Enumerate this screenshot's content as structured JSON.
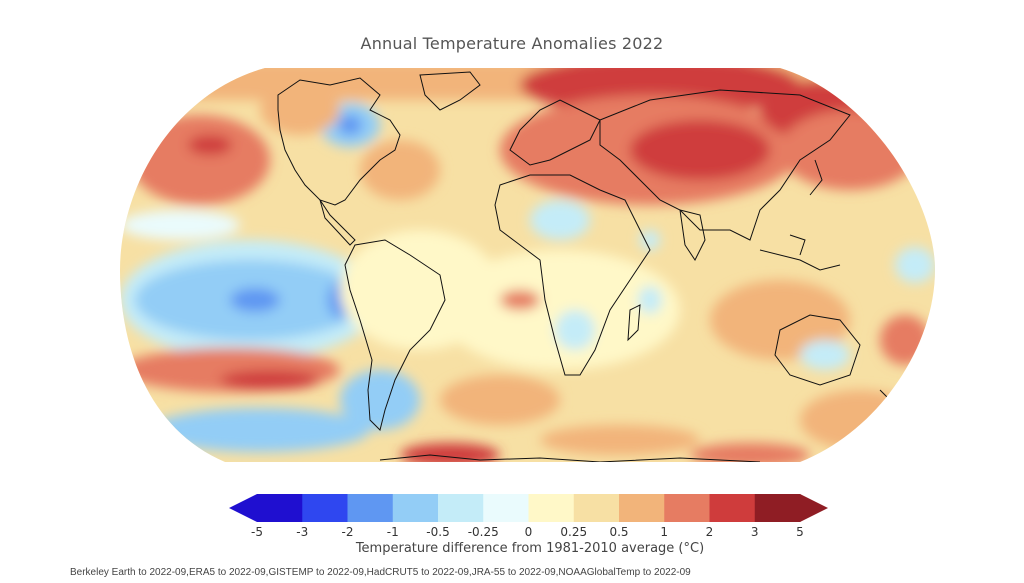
{
  "title": "Annual Temperature Anomalies 2022",
  "legend": {
    "title": "Temperature difference from 1981-2010 average (°C)",
    "ticks": [
      "-5",
      "-3",
      "-2",
      "-1",
      "-0.5",
      "-0.25",
      "0",
      "0.25",
      "0.5",
      "1",
      "2",
      "3",
      "5"
    ],
    "colors": [
      "#1f0fd0",
      "#2f47f0",
      "#5f97f2",
      "#93cdf6",
      "#c4ecf8",
      "#eafbfd",
      "#fff8c8",
      "#f7e0a4",
      "#f2b47a",
      "#e67c62",
      "#cf3c3c",
      "#8f1d24"
    ],
    "extend_low_color": "#1f0fd0",
    "extend_high_color": "#8f1d24"
  },
  "source": "Berkeley Earth to 2022-09,ERA5 to 2022-09,GISTEMP to 2022-09,HadCRUT5 to 2022-09,JRA-55 to 2022-09,NOAAGlobalTemp to 2022-09",
  "map": {
    "projection": "Robinson",
    "ocean_note_colors": {
      "coastline": "#111111",
      "background_field": "#f7e0a4"
    }
  }
}
